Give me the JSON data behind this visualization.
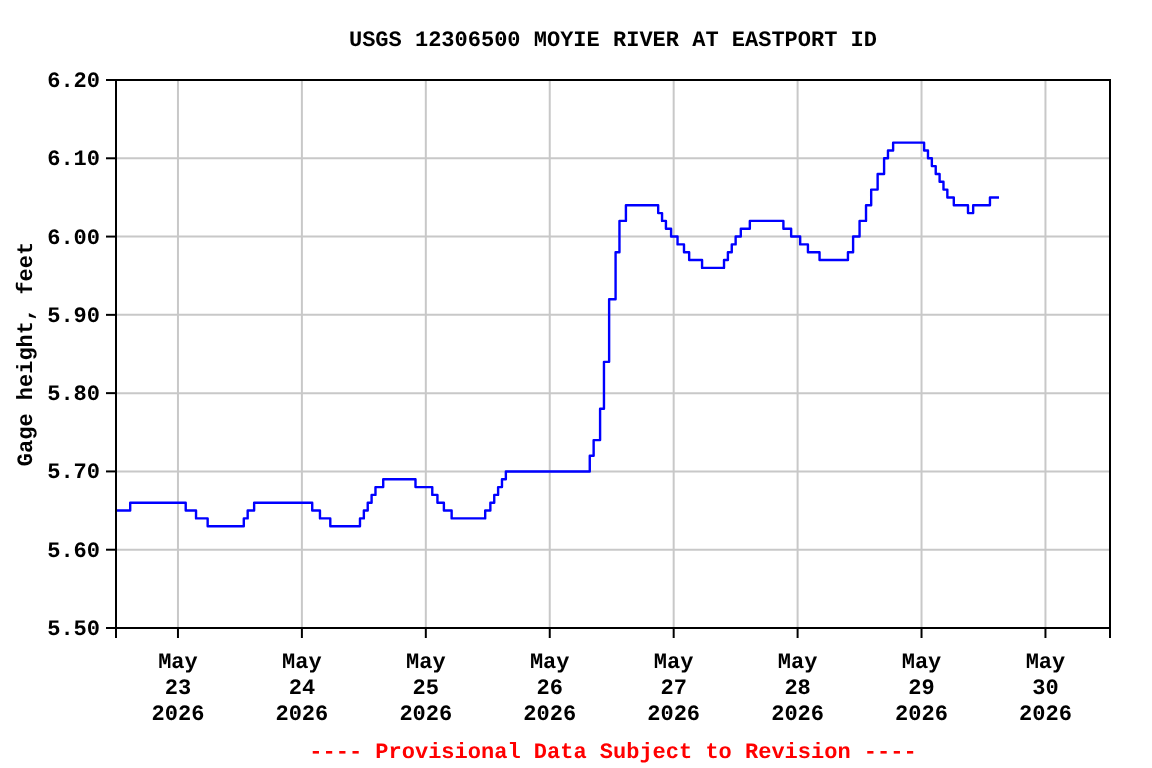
{
  "chart_data": {
    "type": "step",
    "title": "USGS 12306500 MOYIE RIVER AT EASTPORT ID",
    "ylabel": "Gage height, feet",
    "annotations": [
      "---- Provisional Data Subject to Revision ----"
    ],
    "grid": true,
    "line_style": "solid",
    "marker": "none",
    "xlim": [
      "2026-05-22T12:00",
      "2026-05-30T12:30"
    ],
    "xticks": [
      {
        "value": "2026-05-23",
        "label": "May 23 2026"
      },
      {
        "value": "2026-05-24",
        "label": "May 24 2026"
      },
      {
        "value": "2026-05-25",
        "label": "May 25 2026"
      },
      {
        "value": "2026-05-26",
        "label": "May 26 2026"
      },
      {
        "value": "2026-05-27",
        "label": "May 27 2026"
      },
      {
        "value": "2026-05-28",
        "label": "May 28 2026"
      },
      {
        "value": "2026-05-29",
        "label": "May 29 2026"
      },
      {
        "value": "2026-05-30",
        "label": "May 30 2026"
      }
    ],
    "ylim": [
      5.5,
      6.2
    ],
    "yticks": [
      {
        "value": 5.5,
        "label": "5.50"
      },
      {
        "value": 5.6,
        "label": "5.60"
      },
      {
        "value": 5.7,
        "label": "5.70"
      },
      {
        "value": 5.8,
        "label": "5.80"
      },
      {
        "value": 5.9,
        "label": "5.90"
      },
      {
        "value": 6.0,
        "label": "6.00"
      },
      {
        "value": 6.1,
        "label": "6.10"
      },
      {
        "value": 6.2,
        "label": "6.20"
      }
    ],
    "series": [
      {
        "color": "#0000ff",
        "x": [
          "2026-05-22T12:00",
          "2026-05-22T14:45",
          "2026-05-23T01:30",
          "2026-05-23T03:30",
          "2026-05-23T05:45",
          "2026-05-23T12:45",
          "2026-05-23T13:30",
          "2026-05-23T14:45",
          "2026-05-23T16:45",
          "2026-05-24T02:00",
          "2026-05-24T03:30",
          "2026-05-24T05:30",
          "2026-05-24T10:30",
          "2026-05-24T11:15",
          "2026-05-24T12:00",
          "2026-05-24T12:45",
          "2026-05-24T13:30",
          "2026-05-24T14:15",
          "2026-05-24T15:45",
          "2026-05-24T22:00",
          "2026-05-25T01:15",
          "2026-05-25T02:15",
          "2026-05-25T03:30",
          "2026-05-25T05:00",
          "2026-05-25T10:45",
          "2026-05-25T11:30",
          "2026-05-25T12:30",
          "2026-05-25T13:15",
          "2026-05-25T14:00",
          "2026-05-25T14:45",
          "2026-05-25T15:30",
          "2026-05-26T07:00",
          "2026-05-26T07:45",
          "2026-05-26T08:30",
          "2026-05-26T09:45",
          "2026-05-26T10:30",
          "2026-05-26T11:30",
          "2026-05-26T12:45",
          "2026-05-26T13:30",
          "2026-05-26T14:45",
          "2026-05-26T21:00",
          "2026-05-26T21:45",
          "2026-05-26T22:30",
          "2026-05-26T23:30",
          "2026-05-27T00:45",
          "2026-05-27T02:00",
          "2026-05-27T03:00",
          "2026-05-27T05:30",
          "2026-05-27T09:45",
          "2026-05-27T10:30",
          "2026-05-27T11:15",
          "2026-05-27T12:00",
          "2026-05-27T13:00",
          "2026-05-27T14:45",
          "2026-05-27T21:15",
          "2026-05-27T22:45",
          "2026-05-28T00:30",
          "2026-05-28T02:00",
          "2026-05-28T04:15",
          "2026-05-28T09:45",
          "2026-05-28T10:45",
          "2026-05-28T12:00",
          "2026-05-28T13:15",
          "2026-05-28T14:15",
          "2026-05-28T15:30",
          "2026-05-28T16:45",
          "2026-05-28T17:30",
          "2026-05-28T18:30",
          "2026-05-29T00:30",
          "2026-05-29T01:15",
          "2026-05-29T02:00",
          "2026-05-29T02:45",
          "2026-05-29T03:30",
          "2026-05-29T04:15",
          "2026-05-29T05:00",
          "2026-05-29T06:15",
          "2026-05-29T09:00",
          "2026-05-29T10:00",
          "2026-05-29T13:15",
          "2026-05-29T15:00"
        ],
        "values": [
          5.65,
          5.66,
          5.65,
          5.64,
          5.63,
          5.64,
          5.65,
          5.66,
          5.66,
          5.65,
          5.64,
          5.63,
          5.63,
          5.64,
          5.65,
          5.66,
          5.67,
          5.68,
          5.69,
          5.68,
          5.67,
          5.66,
          5.65,
          5.64,
          5.64,
          5.65,
          5.66,
          5.67,
          5.68,
          5.69,
          5.7,
          5.7,
          5.72,
          5.74,
          5.78,
          5.84,
          5.92,
          5.98,
          6.02,
          6.04,
          6.03,
          6.02,
          6.01,
          6.0,
          5.99,
          5.98,
          5.97,
          5.96,
          5.97,
          5.98,
          5.99,
          6.0,
          6.01,
          6.02,
          6.01,
          6.0,
          5.99,
          5.98,
          5.97,
          5.98,
          6.0,
          6.02,
          6.04,
          6.06,
          6.08,
          6.1,
          6.11,
          6.12,
          6.11,
          6.1,
          6.09,
          6.08,
          6.07,
          6.06,
          6.05,
          6.04,
          6.03,
          6.04,
          6.05,
          6.05
        ]
      }
    ]
  }
}
